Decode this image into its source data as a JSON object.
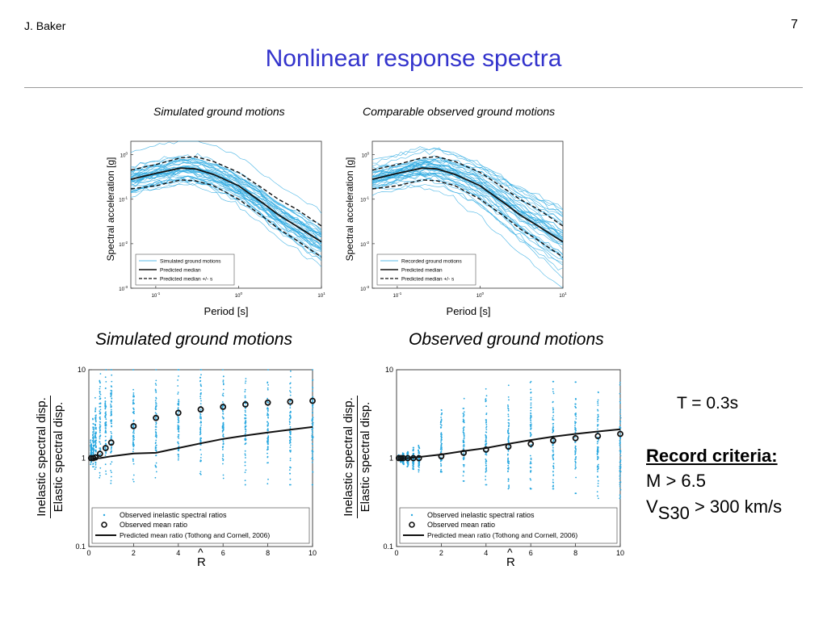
{
  "header": {
    "author": "J. Baker",
    "page_number": "7"
  },
  "title": "Nonlinear response spectra",
  "captions": {
    "top_left": "Simulated ground motions",
    "top_right": "Comparable observed ground motions",
    "bottom_left": "Simulated ground motions",
    "bottom_right": "Observed ground motions"
  },
  "criteria": {
    "period": "T = 0.3s",
    "title": "Record criteria:",
    "magnitude": "M > 6.5",
    "vs_prefix": "V",
    "vs_sub": "S30",
    "vs_suffix": " > 300 km/s"
  },
  "colors": {
    "title": "#3333cc",
    "records": "#29a8e0",
    "median": "#111111"
  },
  "chart_data": [
    {
      "type": "line",
      "title": "",
      "xlabel": "Period [s]",
      "ylabel": "Spectral acceleration [g]",
      "xscale": "log",
      "yscale": "log",
      "xlim": [
        0.05,
        10
      ],
      "ylim": [
        0.001,
        2
      ],
      "xticks": [
        "10-1",
        "10^0",
        "10^1"
      ],
      "yticks": [
        "10^-3",
        "10^-2",
        "10^-1",
        "10^0"
      ],
      "median": {
        "x": [
          0.05,
          0.1,
          0.2,
          0.3,
          0.5,
          1,
          2,
          3,
          5,
          10
        ],
        "y": [
          0.28,
          0.38,
          0.5,
          0.48,
          0.36,
          0.2,
          0.08,
          0.045,
          0.025,
          0.011
        ]
      },
      "upper": {
        "x": [
          0.05,
          0.1,
          0.2,
          0.3,
          0.5,
          1,
          2,
          3,
          5,
          10
        ],
        "y": [
          0.45,
          0.6,
          0.85,
          0.9,
          0.7,
          0.4,
          0.17,
          0.1,
          0.06,
          0.025
        ]
      },
      "lower": {
        "x": [
          0.05,
          0.1,
          0.2,
          0.3,
          0.5,
          1,
          2,
          3,
          5,
          10
        ],
        "y": [
          0.17,
          0.2,
          0.27,
          0.26,
          0.2,
          0.1,
          0.04,
          0.022,
          0.012,
          0.005
        ]
      },
      "legend": [
        "Simulated ground motions",
        "Predicted median",
        "Predicted median +/-   s"
      ],
      "legend_loc": "bottom-left",
      "n_records": 40
    },
    {
      "type": "line",
      "title": "",
      "xlabel": "Period [s]",
      "ylabel": "Spectral acceleration [g]",
      "xscale": "log",
      "yscale": "log",
      "xlim": [
        0.05,
        10
      ],
      "ylim": [
        0.001,
        2
      ],
      "xticks": [
        "10-1",
        "10^0",
        "10^1"
      ],
      "yticks": [
        "10^-3",
        "10^-2",
        "10^-1",
        "10^0"
      ],
      "median": {
        "x": [
          0.05,
          0.1,
          0.2,
          0.3,
          0.5,
          1,
          2,
          3,
          5,
          10
        ],
        "y": [
          0.28,
          0.38,
          0.5,
          0.48,
          0.36,
          0.2,
          0.08,
          0.045,
          0.025,
          0.011
        ]
      },
      "upper": {
        "x": [
          0.05,
          0.1,
          0.2,
          0.3,
          0.5,
          1,
          2,
          3,
          5,
          10
        ],
        "y": [
          0.45,
          0.6,
          0.85,
          0.9,
          0.7,
          0.4,
          0.17,
          0.1,
          0.06,
          0.025
        ]
      },
      "lower": {
        "x": [
          0.05,
          0.1,
          0.2,
          0.3,
          0.5,
          1,
          2,
          3,
          5,
          10
        ],
        "y": [
          0.17,
          0.2,
          0.27,
          0.26,
          0.2,
          0.1,
          0.04,
          0.022,
          0.012,
          0.005
        ]
      },
      "legend": [
        "Recorded ground motions",
        "Predicted median",
        "Predicted median +/-   s"
      ],
      "legend_loc": "bottom-left",
      "n_records": 40
    },
    {
      "type": "scatter",
      "title": "",
      "xlabel": "R",
      "ylabel_top": "Inelastic spectral disp.",
      "ylabel_bottom": "Elastic spectral disp.",
      "yscale": "log",
      "xlim": [
        0,
        10
      ],
      "ylim": [
        0.1,
        10
      ],
      "xticks": [
        "0",
        "2",
        "4",
        "6",
        "8",
        "10"
      ],
      "yticks": [
        "0.1",
        "1",
        "10"
      ],
      "mean_ratio": {
        "x": [
          0.1,
          0.2,
          0.3,
          0.5,
          0.75,
          1,
          2,
          3,
          4,
          5,
          6,
          7,
          8,
          9,
          10
        ],
        "y": [
          1.0,
          1.0,
          1.02,
          1.12,
          1.3,
          1.5,
          2.3,
          2.85,
          3.25,
          3.55,
          3.8,
          4.05,
          4.25,
          4.35,
          4.45
        ]
      },
      "predicted": {
        "x": [
          0,
          0.5,
          1,
          2,
          3,
          4,
          5,
          6,
          7,
          8,
          9,
          10
        ],
        "y": [
          1.0,
          1.0,
          1.05,
          1.13,
          1.15,
          1.3,
          1.47,
          1.65,
          1.8,
          1.95,
          2.1,
          2.25
        ]
      },
      "scatter_range": {
        "x": [
          0.1,
          0.2,
          0.3,
          0.5,
          0.75,
          1,
          2,
          3,
          4,
          5,
          6,
          7,
          8,
          9,
          10
        ],
        "ymin": [
          0.85,
          0.8,
          0.75,
          0.6,
          0.55,
          0.5,
          0.5,
          0.5,
          0.5,
          0.5,
          0.5,
          0.5,
          0.5,
          0.5,
          0.5
        ],
        "ymax": [
          1.6,
          2.8,
          5,
          9,
          10,
          10,
          10,
          10,
          10,
          10,
          10,
          10,
          10,
          10,
          10
        ]
      },
      "legend": [
        "Observed inelastic spectral ratios",
        "Observed mean ratio",
        "Predicted mean ratio (Tothong and Cornell, 2006)"
      ],
      "legend_loc": "bottom"
    },
    {
      "type": "scatter",
      "title": "",
      "xlabel": "R",
      "ylabel_top": "Inelastic spectral disp.",
      "ylabel_bottom": "Elastic spectral disp.",
      "yscale": "log",
      "xlim": [
        0,
        10
      ],
      "ylim": [
        0.1,
        10
      ],
      "xticks": [
        "0",
        "2",
        "4",
        "6",
        "8",
        "10"
      ],
      "yticks": [
        "0.1",
        "1",
        "10"
      ],
      "mean_ratio": {
        "x": [
          0.1,
          0.2,
          0.3,
          0.5,
          0.75,
          1,
          2,
          3,
          4,
          5,
          6,
          7,
          8,
          9,
          10
        ],
        "y": [
          1.0,
          1.0,
          1.0,
          1.0,
          1.0,
          1.0,
          1.05,
          1.15,
          1.25,
          1.35,
          1.45,
          1.58,
          1.68,
          1.78,
          1.88
        ]
      },
      "predicted": {
        "x": [
          0,
          0.5,
          1,
          2,
          3,
          4,
          5,
          6,
          7,
          8,
          9,
          10
        ],
        "y": [
          1.0,
          1.0,
          1.03,
          1.1,
          1.2,
          1.3,
          1.45,
          1.6,
          1.75,
          1.88,
          2.0,
          2.12
        ]
      },
      "scatter_range": {
        "x": [
          0.1,
          0.2,
          0.3,
          0.5,
          0.75,
          1,
          2,
          3,
          4,
          5,
          6,
          7,
          8,
          9,
          10
        ],
        "ymin": [
          0.95,
          0.9,
          0.85,
          0.8,
          0.75,
          0.7,
          0.7,
          0.55,
          0.5,
          0.45,
          0.45,
          0.45,
          0.4,
          0.35,
          0.35
        ],
        "ymax": [
          1.1,
          1.15,
          1.2,
          1.3,
          1.4,
          1.5,
          4.2,
          6,
          8,
          9,
          10,
          10,
          10,
          10,
          10
        ]
      },
      "legend": [
        "Observed inelastic spectral ratios",
        "Observed mean ratio",
        "Predicted mean ratio (Tothong and Cornell, 2006)"
      ],
      "legend_loc": "bottom"
    }
  ]
}
